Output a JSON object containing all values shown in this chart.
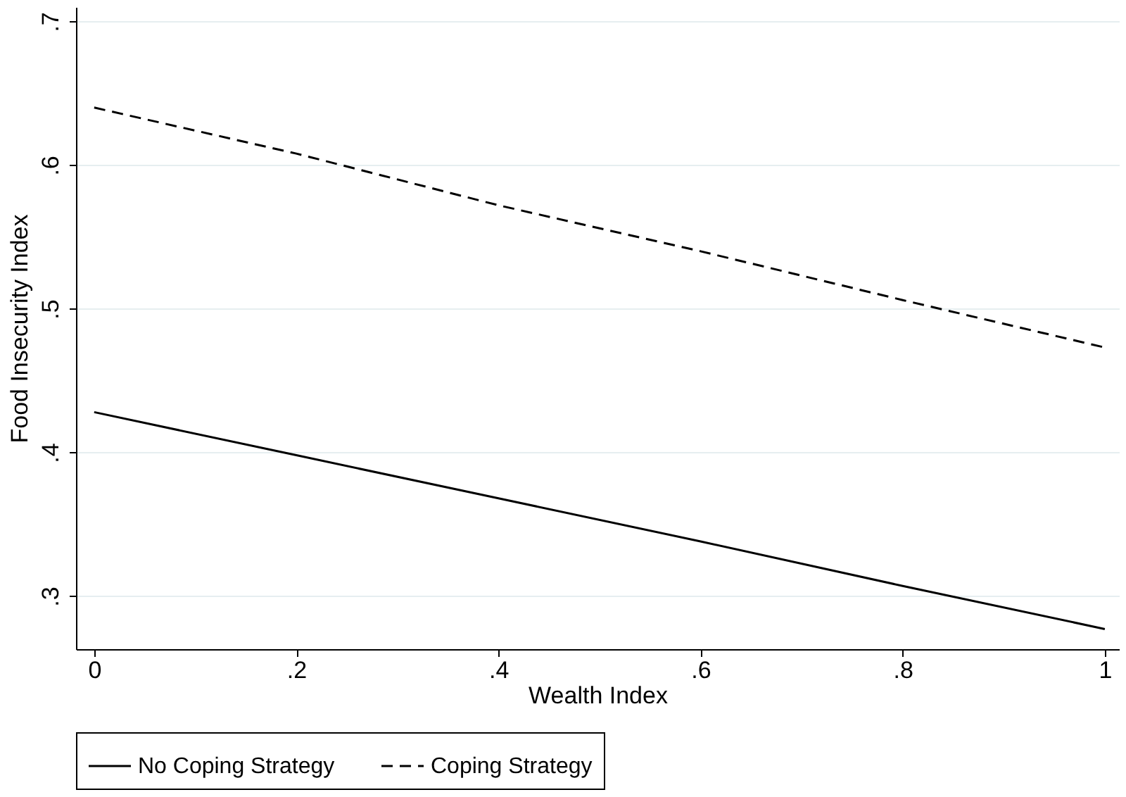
{
  "chart_data": {
    "type": "line",
    "xlabel": "Wealth Index",
    "ylabel": "Food Insecurity Index",
    "x": [
      0,
      0.2,
      0.4,
      0.6,
      0.8,
      1
    ],
    "series": [
      {
        "name": "No Coping Strategy",
        "color": "#000000",
        "line_style": "solid",
        "values": [
          0.428,
          0.398,
          0.368,
          0.338,
          0.307,
          0.277
        ]
      },
      {
        "name": "Coping Strategy",
        "color": "#000000",
        "line_style": "dashed",
        "values": [
          0.64,
          0.608,
          0.572,
          0.54,
          0.506,
          0.473
        ]
      }
    ],
    "xlim": [
      -0.018,
      1.014
    ],
    "ylim": [
      0.263,
      0.71
    ],
    "xticks": [
      0,
      {
        "value": 0.2,
        "label": ".2"
      },
      {
        "value": 0.4,
        "label": ".4"
      },
      {
        "value": 0.6,
        "label": ".6"
      },
      {
        "value": 0.8,
        "label": ".8"
      },
      1
    ],
    "yticks": [
      {
        "value": 0.3,
        "label": ".3"
      },
      {
        "value": 0.4,
        "label": ".4"
      },
      {
        "value": 0.5,
        "label": ".5"
      },
      {
        "value": 0.6,
        "label": ".6"
      },
      {
        "value": 0.7,
        "label": ".7"
      }
    ],
    "grid": "y",
    "legend": "bottom",
    "marker": "none"
  }
}
